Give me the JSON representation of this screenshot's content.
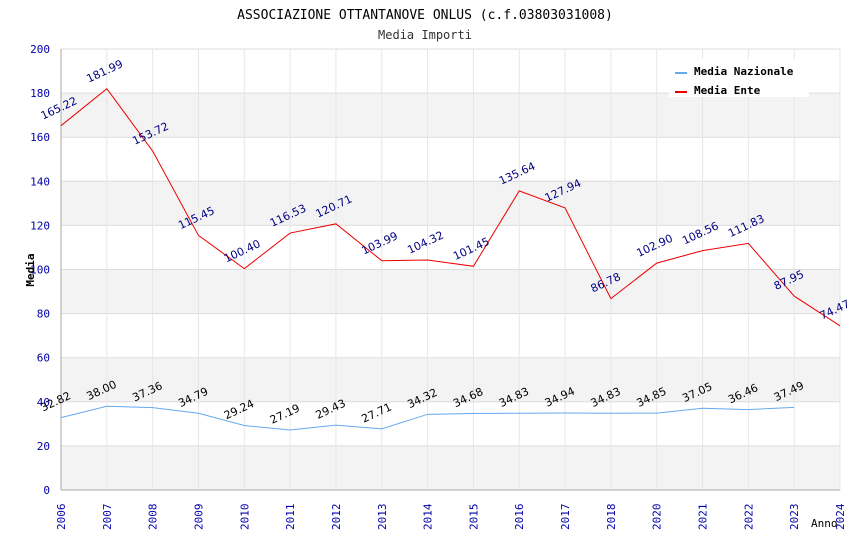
{
  "chart_data": {
    "type": "line",
    "title": "ASSOCIAZIONE OTTANTANOVE ONLUS (c.f.03803031008)",
    "subtitle": "Media Importi",
    "xlabel": "Anno",
    "ylabel": "Media",
    "ylim": [
      0,
      200
    ],
    "yticks": [
      0,
      20,
      40,
      60,
      80,
      100,
      120,
      140,
      160,
      180,
      200
    ],
    "grid": true,
    "legend_position": "top-right",
    "categories": [
      "2006",
      "2007",
      "2008",
      "2009",
      "2010",
      "2011",
      "2012",
      "2013",
      "2014",
      "2015",
      "2016",
      "2017",
      "2018",
      "2020",
      "2021",
      "2022",
      "2023",
      "2024"
    ],
    "series": [
      {
        "name": "Media Nazionale",
        "color": "#66aaee",
        "label_color": "#000000",
        "values": [
          32.82,
          38.0,
          37.36,
          34.79,
          29.24,
          27.19,
          29.43,
          27.71,
          34.32,
          34.68,
          34.83,
          34.94,
          34.83,
          34.85,
          37.05,
          36.46,
          37.49,
          null
        ],
        "labels": [
          "32.82",
          "38.00",
          "37.36",
          "34.79",
          "29.24",
          "27.19",
          "29.43",
          "27.71",
          "34.32",
          "34.68",
          "34.83",
          "34.94",
          "34.83",
          "34.85",
          "37.05",
          "36.46",
          "37.49",
          null
        ]
      },
      {
        "name": "Media Ente",
        "color": "#ee0000",
        "label_color": "#000080",
        "values": [
          165.22,
          181.99,
          153.72,
          115.45,
          100.4,
          116.53,
          120.71,
          103.99,
          104.32,
          101.45,
          135.64,
          127.94,
          86.78,
          102.9,
          108.56,
          111.83,
          87.95,
          74.47
        ],
        "labels": [
          "165.22",
          "181.99",
          "153.72",
          "115.45",
          "100.40",
          "116.53",
          "120.71",
          "103.99",
          "104.32",
          "101.45",
          "135.64",
          "127.94",
          "86.78",
          "102.90",
          "108.56",
          "111.83",
          "87.95",
          "74.47"
        ]
      }
    ]
  }
}
